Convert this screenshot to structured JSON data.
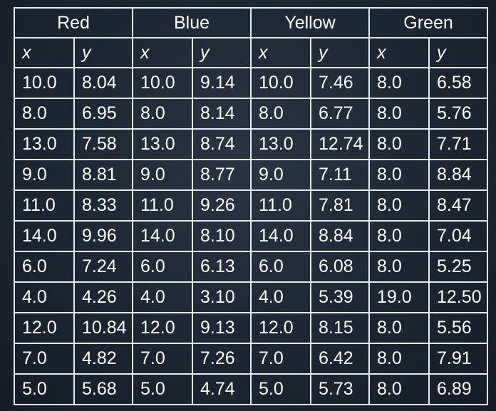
{
  "chart_data": {
    "type": "table",
    "groups": [
      "Red",
      "Blue",
      "Yellow",
      "Green"
    ],
    "axis_labels": [
      "x",
      "y"
    ],
    "rows": [
      [
        "10.0",
        "8.04",
        "10.0",
        "9.14",
        "10.0",
        "7.46",
        "8.0",
        "6.58"
      ],
      [
        "8.0",
        "6.95",
        "8.0",
        "8.14",
        "8.0",
        "6.77",
        "8.0",
        "5.76"
      ],
      [
        "13.0",
        "7.58",
        "13.0",
        "8.74",
        "13.0",
        "12.74",
        "8.0",
        "7.71"
      ],
      [
        "9.0",
        "8.81",
        "9.0",
        "8.77",
        "9.0",
        "7.11",
        "8.0",
        "8.84"
      ],
      [
        "11.0",
        "8.33",
        "11.0",
        "9.26",
        "11.0",
        "7.81",
        "8.0",
        "8.47"
      ],
      [
        "14.0",
        "9.96",
        "14.0",
        "8.10",
        "14.0",
        "8.84",
        "8.0",
        "7.04"
      ],
      [
        "6.0",
        "7.24",
        "6.0",
        "6.13",
        "6.0",
        "6.08",
        "8.0",
        "5.25"
      ],
      [
        "4.0",
        "4.26",
        "4.0",
        "3.10",
        "4.0",
        "5.39",
        "19.0",
        "12.50"
      ],
      [
        "12.0",
        "10.84",
        "12.0",
        "9.13",
        "12.0",
        "8.15",
        "8.0",
        "5.56"
      ],
      [
        "7.0",
        "4.82",
        "7.0",
        "7.26",
        "7.0",
        "6.42",
        "8.0",
        "7.91"
      ],
      [
        "5.0",
        "5.68",
        "5.0",
        "4.74",
        "5.0",
        "5.73",
        "8.0",
        "6.89"
      ]
    ]
  },
  "colors": {
    "background": "#1d2634",
    "grid": "#e8ecf2",
    "text": "#ffffff"
  }
}
